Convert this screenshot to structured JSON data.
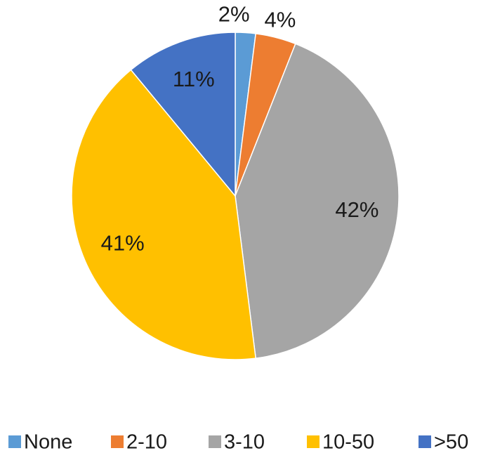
{
  "chart_data": {
    "type": "pie",
    "categories": [
      "None",
      "2-10",
      "3-10",
      "10-50",
      ">50"
    ],
    "values": [
      2,
      4,
      42,
      41,
      11
    ],
    "value_labels": [
      "2%",
      "4%",
      "42%",
      "41%",
      "11%"
    ],
    "colors": [
      "#5b9bd5",
      "#ed7d31",
      "#a5a5a5",
      "#ffc000",
      "#4472c4"
    ],
    "legend": "bottom"
  }
}
